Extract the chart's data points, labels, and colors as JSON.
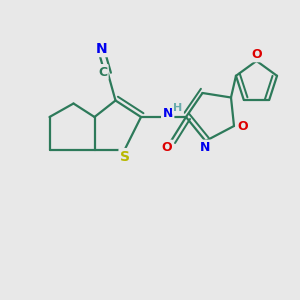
{
  "background_color": "#e8e8e8",
  "bond_color": "#2d7a5a",
  "bond_width": 1.6,
  "atoms": {
    "S": {
      "color": "#b8b800"
    },
    "N": {
      "color": "#0000ee"
    },
    "O": {
      "color": "#dd0000"
    },
    "H": {
      "color": "#6aacac"
    },
    "C": {
      "color": "#2d7a5a"
    }
  },
  "figsize": [
    3.0,
    3.0
  ],
  "dpi": 100,
  "xlim": [
    0,
    10
  ],
  "ylim": [
    0,
    10
  ]
}
